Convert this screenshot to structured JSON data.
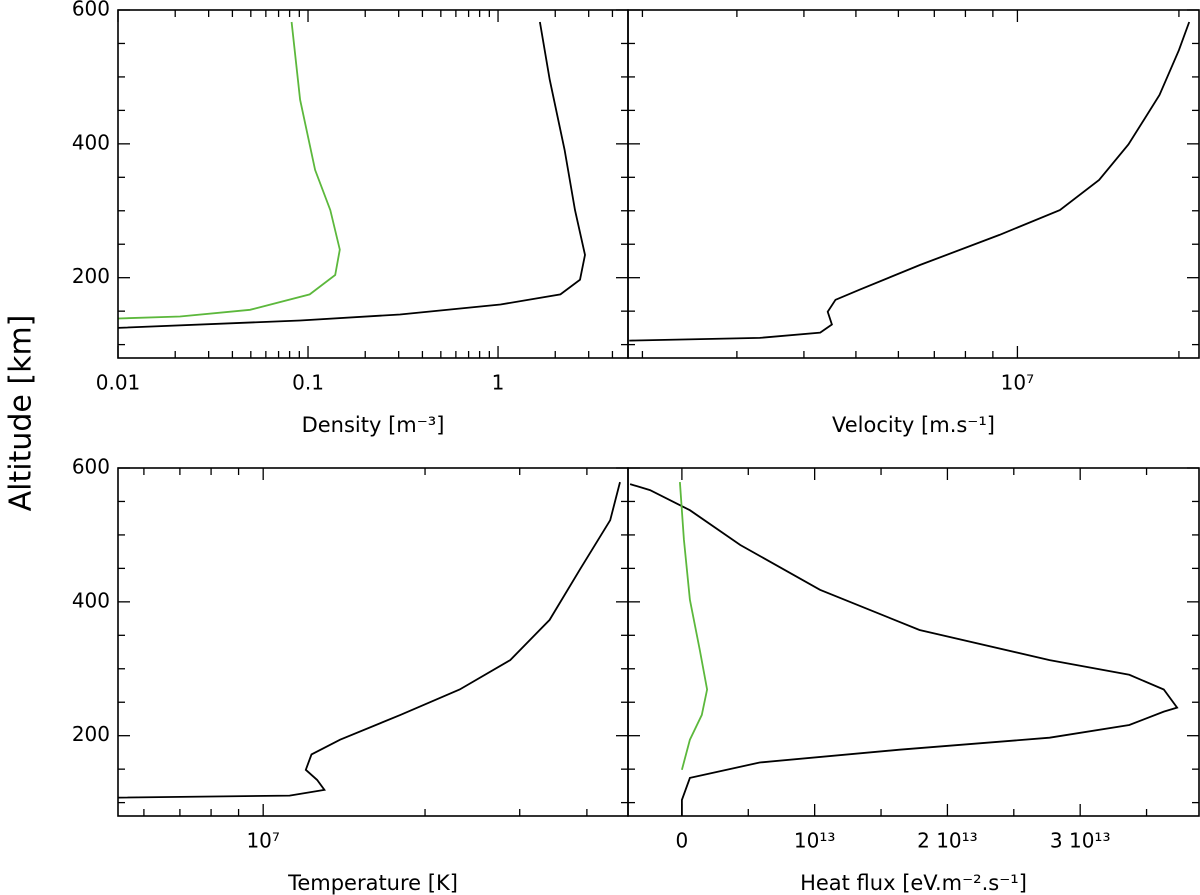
{
  "ylabel": "Altitude [km]",
  "chart_data": [
    {
      "type": "line",
      "xlabel": "Density [m⁻³]",
      "xscale": "log",
      "xlim": [
        0.01,
        4.83
      ],
      "xticks": [
        0.01,
        0.1,
        1
      ],
      "xminorticks": [
        0.02,
        0.03,
        0.04,
        0.05,
        0.06,
        0.07,
        0.08,
        0.09,
        0.2,
        0.3,
        0.4,
        0.5,
        0.6,
        0.7,
        0.8,
        0.9,
        2,
        3,
        4
      ],
      "ylim": [
        80,
        600
      ],
      "yticks": [
        200,
        400,
        600
      ],
      "yminorticks": [
        100,
        150,
        250,
        300,
        350,
        450,
        500,
        550
      ],
      "ytick_labels": true,
      "series": [
        {
          "color": "#5cb83c",
          "x": [
            0.082,
            0.0908,
            0.109,
            0.131,
            0.147,
            0.139,
            0.102,
            0.0495,
            0.0212,
            0.01
          ],
          "y": [
            582,
            466,
            361,
            301,
            242,
            204,
            175,
            152,
            142,
            139
          ]
        },
        {
          "color": "#000000",
          "x": [
            1.66,
            1.87,
            2.24,
            2.54,
            2.87,
            2.7,
            2.13,
            1.03,
            0.305,
            0.091,
            0.01
          ],
          "y": [
            582,
            496,
            391,
            301,
            234,
            197,
            175,
            160,
            145,
            136,
            125
          ]
        }
      ]
    },
    {
      "type": "line",
      "xlabel": "Velocity [m.s⁻¹]",
      "xscale": "log",
      "xlim": [
        1880000,
        21800000
      ],
      "xticks": [
        {
          "value": 10000000,
          "label": "10⁷"
        }
      ],
      "xminorticks": [
        2000000,
        3000000,
        4000000,
        5000000,
        6000000,
        7000000,
        8000000,
        9000000,
        20000000
      ],
      "ylim": [
        80,
        600
      ],
      "yticks": [
        200,
        400,
        600
      ],
      "yminorticks": [
        100,
        150,
        250,
        300,
        350,
        450,
        500,
        550
      ],
      "ytick_labels": false,
      "series": [
        {
          "color": "#000000",
          "x": [
            1890000,
            3310000,
            4290000,
            4510000,
            4430000,
            4580000,
            5080000,
            6580000,
            9260000,
            12000000,
            14200000,
            16100000,
            18400000,
            20000000,
            20900000
          ],
          "y": [
            106,
            110,
            118,
            130,
            149,
            167,
            182,
            219,
            264,
            301,
            346,
            399,
            473,
            540,
            582
          ]
        }
      ]
    },
    {
      "type": "line",
      "xlabel": "Temperature [K]",
      "xscale": "log",
      "xlim": [
        5370000,
        47700000
      ],
      "xticks": [
        {
          "value": 10000000,
          "label": "10⁷"
        }
      ],
      "xminorticks": [
        6000000,
        7000000,
        8000000,
        9000000,
        20000000,
        30000000,
        40000000
      ],
      "ylim": [
        80,
        600
      ],
      "yticks": [
        200,
        400,
        600
      ],
      "yminorticks": [
        100,
        150,
        250,
        300,
        350,
        450,
        500,
        550
      ],
      "ytick_labels": true,
      "series": [
        {
          "color": "#000000",
          "x": [
            5370000,
            11200000,
            13000000,
            12600000,
            12000000,
            12300000,
            13900000,
            18000000,
            23200000,
            28800000,
            34100000,
            38800000,
            44200000,
            46100000
          ],
          "y": [
            107.5,
            110.5,
            119,
            134,
            149,
            172,
            194,
            231,
            269,
            313,
            373,
            448,
            522,
            579
          ]
        }
      ]
    },
    {
      "type": "line",
      "xlabel": "Heat flux [eV.m⁻².s⁻¹]",
      "xscale": "linear",
      "xlim": [
        -4060000000000,
        38950000000000
      ],
      "xticks": [
        0,
        {
          "value": 10000000000000,
          "label": "10¹³"
        },
        {
          "value": 20000000000000,
          "label": "2 10¹³"
        },
        {
          "value": 30000000000000,
          "label": "3 10¹³"
        }
      ],
      "xminorticks": [
        5000000000000,
        15000000000000,
        25000000000000,
        35000000000000
      ],
      "ylim": [
        80,
        600
      ],
      "yticks": [
        200,
        400,
        600
      ],
      "yminorticks": [
        100,
        150,
        250,
        300,
        350,
        450,
        500,
        550
      ],
      "ytick_labels": false,
      "series": [
        {
          "color": "#000000",
          "x": [
            0,
            0,
            600000000000,
            5860000000000,
            16400000000000,
            27700000000000,
            33700000000000,
            36300000000000,
            37300000000000,
            36300000000000,
            33700000000000,
            27700000000000,
            17900000000000,
            10400000000000,
            4400000000000,
            600000000000,
            -2400000000000,
            -3900000000000
          ],
          "y": [
            80,
            104,
            137,
            160,
            179,
            197,
            216,
            236,
            242,
            269,
            291,
            313,
            358,
            418,
            485,
            537,
            567,
            576
          ]
        },
        {
          "color": "#5cb83c",
          "x": [
            0,
            600000000000,
            1500000000000,
            1900000000000,
            1350000000000,
            600000000000,
            150000000000,
            -150000000000
          ],
          "y": [
            149,
            194,
            231,
            269,
            328,
            403,
            493,
            579
          ]
        }
      ]
    }
  ]
}
